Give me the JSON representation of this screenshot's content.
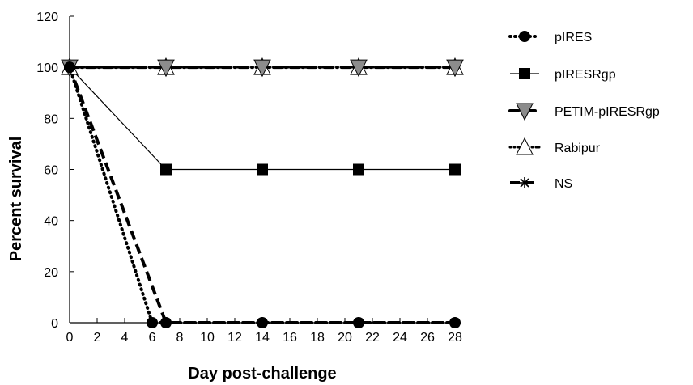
{
  "chart_data": {
    "type": "line",
    "xlabel": "Day post-challenge",
    "ylabel": "Percent survival",
    "xlim": [
      0,
      28
    ],
    "ylim": [
      0,
      120
    ],
    "xticks": [
      0,
      2,
      4,
      6,
      8,
      10,
      12,
      14,
      16,
      18,
      20,
      22,
      24,
      26,
      28
    ],
    "yticks": [
      0,
      20,
      40,
      60,
      80,
      100,
      120
    ],
    "grid": false,
    "legend_position": "right",
    "series": [
      {
        "name": "pIRES",
        "marker": "circle",
        "line": "dotted",
        "x": [
          0,
          6,
          7,
          14,
          21,
          28
        ],
        "values": [
          100,
          0,
          0,
          0,
          0,
          0
        ]
      },
      {
        "name": "pIRESRgp",
        "marker": "square",
        "line": "solid",
        "x": [
          0,
          7,
          14,
          21,
          28
        ],
        "values": [
          100,
          60,
          60,
          60,
          60
        ]
      },
      {
        "name": "PETIM-pIRESRgp",
        "marker": "triangle-down",
        "line": "dash-dot",
        "x": [
          0,
          7,
          14,
          21,
          28
        ],
        "values": [
          100,
          100,
          100,
          100,
          100
        ]
      },
      {
        "name": "Rabipur",
        "marker": "triangle-up",
        "line": "dash-dot-dot",
        "x": [
          0,
          7,
          14,
          21,
          28
        ],
        "values": [
          100,
          100,
          100,
          100,
          100
        ]
      },
      {
        "name": "NS",
        "marker": "asterisk",
        "line": "long-dash",
        "x": [
          0,
          7,
          14,
          21,
          28
        ],
        "values": [
          100,
          0,
          0,
          0,
          0
        ]
      }
    ]
  }
}
